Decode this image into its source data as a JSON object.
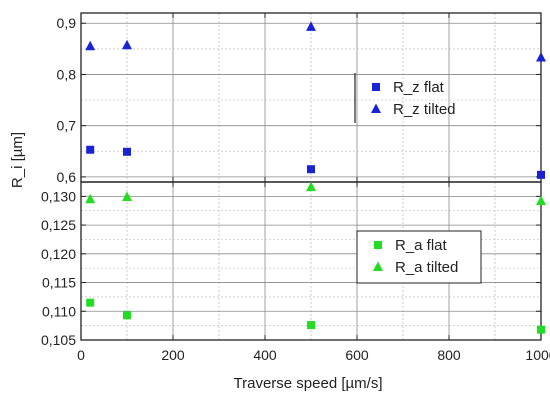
{
  "chart_data": [
    {
      "type": "scatter",
      "panel": "top",
      "xlabel": "",
      "ylabel": "R_i [µm]",
      "xlim": [
        0,
        1000
      ],
      "ylim": [
        0.59,
        0.92
      ],
      "x_ticks": [
        0,
        200,
        400,
        600,
        800,
        1000
      ],
      "y_ticks": [
        0.6,
        0.7,
        0.8,
        0.9
      ],
      "y_tick_labels": [
        "0,6",
        "0,7",
        "0,8",
        "0,9"
      ],
      "grid": true,
      "legend_position": "right",
      "series": [
        {
          "name": "R_z flat",
          "marker": "square",
          "color": "#1a22d6",
          "x": [
            20,
            100,
            500,
            1000
          ],
          "y": [
            0.653,
            0.649,
            0.615,
            0.604
          ]
        },
        {
          "name": "R_z tilted",
          "marker": "triangle",
          "color": "#1a22d6",
          "x": [
            20,
            100,
            500,
            1000
          ],
          "y": [
            0.855,
            0.857,
            0.893,
            0.833
          ]
        }
      ]
    },
    {
      "type": "scatter",
      "panel": "bottom",
      "xlabel": "Traverse speed [µm/s]",
      "ylabel": "",
      "xlim": [
        0,
        1000
      ],
      "ylim": [
        0.105,
        0.1325
      ],
      "x_ticks": [
        0,
        200,
        400,
        600,
        800,
        1000
      ],
      "x_tick_labels": [
        "0",
        "200",
        "400",
        "600",
        "800",
        "1000"
      ],
      "y_ticks": [
        0.105,
        0.11,
        0.115,
        0.12,
        0.125,
        0.13
      ],
      "y_tick_labels": [
        "0,105",
        "0,110",
        "0,115",
        "0,120",
        "0,125",
        "0,130"
      ],
      "grid": true,
      "legend_position": "right",
      "series": [
        {
          "name": "R_a flat",
          "marker": "square",
          "color": "#22dd22",
          "x": [
            20,
            100,
            500,
            1000
          ],
          "y": [
            0.1115,
            0.1093,
            0.1076,
            0.1068
          ]
        },
        {
          "name": "R_a tilted",
          "marker": "triangle",
          "color": "#22dd22",
          "x": [
            20,
            100,
            500,
            1000
          ],
          "y": [
            0.1295,
            0.1299,
            0.1316,
            0.1292
          ]
        }
      ]
    }
  ]
}
